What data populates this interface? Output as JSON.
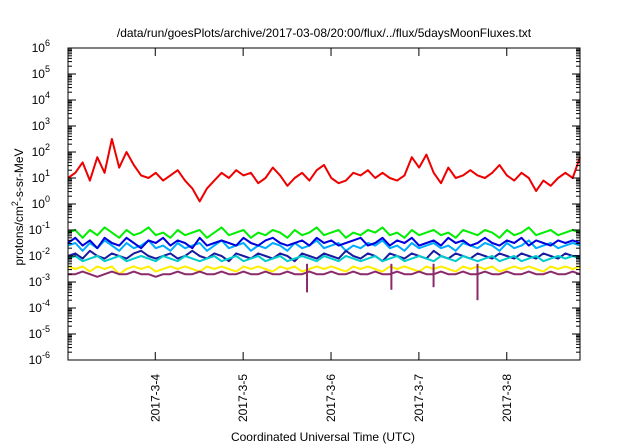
{
  "chart_data": {
    "type": "line",
    "title": "/data/run/goesPlots/archive/2017-03-08/20:00/flux/../flux/5daysMoonFluxes.txt",
    "xlabel": "Coordinated Universal Time (UTC)",
    "ylabel_parts": [
      "protons/cm",
      "2",
      "-s-sr-MeV"
    ],
    "y_scale": "log",
    "ylim_exponents": [
      -6,
      6
    ],
    "y_ticks": [
      {
        "base": "10",
        "exp": "6"
      },
      {
        "base": "10",
        "exp": "5"
      },
      {
        "base": "10",
        "exp": "4"
      },
      {
        "base": "10",
        "exp": "3"
      },
      {
        "base": "10",
        "exp": "2"
      },
      {
        "base": "10",
        "exp": "1"
      },
      {
        "base": "10",
        "exp": "0"
      },
      {
        "base": "10",
        "exp": "-1"
      },
      {
        "base": "10",
        "exp": "-2"
      },
      {
        "base": "10",
        "exp": "-3"
      },
      {
        "base": "10",
        "exp": "-4"
      },
      {
        "base": "10",
        "exp": "-5"
      },
      {
        "base": "10",
        "exp": "-6"
      }
    ],
    "x_range_days": [
      "2017-03-03T00:10",
      "2017-03-08T20:00"
    ],
    "x_ticks": [
      "2017-3-4",
      "2017-3-5",
      "2017-3-6",
      "2017-3-7",
      "2017-3-8"
    ],
    "grid": false,
    "legend": "none",
    "series": [
      {
        "color": "#ee0000",
        "log10_values": [
          1.0,
          1.2,
          1.6,
          0.9,
          1.8,
          1.2,
          2.5,
          1.4,
          2.0,
          1.5,
          1.1,
          1.0,
          1.2,
          0.9,
          1.1,
          1.3,
          0.9,
          0.6,
          0.1,
          0.6,
          0.9,
          1.2,
          1.0,
          1.3,
          1.1,
          1.2,
          0.8,
          1.0,
          1.4,
          1.1,
          0.7,
          1.0,
          1.2,
          0.9,
          1.3,
          1.5,
          1.0,
          0.8,
          0.9,
          1.2,
          1.1,
          1.3,
          1.0,
          1.2,
          1.0,
          0.9,
          1.1,
          1.8,
          1.4,
          1.9,
          1.2,
          0.8,
          1.4,
          1.0,
          1.1,
          1.3,
          1.1,
          1.0,
          1.2,
          1.5,
          1.1,
          0.9,
          1.2,
          1.0,
          0.5,
          0.9,
          0.7,
          1.0,
          1.2,
          1.0,
          1.8
        ]
      },
      {
        "color": "#00ee00",
        "log10_values": [
          -1.1,
          -1.0,
          -1.3,
          -1.0,
          -1.2,
          -0.9,
          -1.1,
          -1.3,
          -1.0,
          -1.2,
          -1.1,
          -0.9,
          -1.2,
          -1.1,
          -1.3,
          -1.0,
          -1.2,
          -1.1,
          -1.0,
          -1.3,
          -1.1,
          -0.9,
          -1.2,
          -1.1,
          -1.0,
          -1.3,
          -1.1,
          -1.2,
          -1.0,
          -1.1,
          -1.3,
          -1.0,
          -1.2,
          -1.1,
          -0.9,
          -1.2,
          -1.1,
          -1.0,
          -1.3,
          -1.1,
          -1.2,
          -1.0,
          -1.1,
          -0.9,
          -1.2,
          -1.1,
          -1.3,
          -1.0,
          -1.2,
          -1.1,
          -1.0,
          -1.2,
          -1.1,
          -1.3,
          -1.0,
          -1.1,
          -1.2,
          -1.0,
          -1.1,
          -1.3,
          -1.0,
          -1.2,
          -1.1,
          -0.9,
          -1.2,
          -1.1,
          -1.0,
          -1.2,
          -1.1,
          -1.0,
          -1.1
        ]
      },
      {
        "color": "#00aaff",
        "log10_values": [
          -1.6,
          -1.5,
          -1.8,
          -1.5,
          -1.7,
          -1.4,
          -1.6,
          -1.8,
          -1.5,
          -1.7,
          -1.6,
          -1.4,
          -1.7,
          -1.6,
          -1.8,
          -1.5,
          -1.7,
          -1.6,
          -1.5,
          -1.8,
          -1.6,
          -1.4,
          -1.7,
          -1.6,
          -1.5,
          -1.8,
          -1.6,
          -1.7,
          -1.5,
          -1.6,
          -1.8,
          -1.5,
          -1.7,
          -1.6,
          -1.4,
          -1.7,
          -1.6,
          -1.5,
          -1.8,
          -1.6,
          -1.7,
          -1.5,
          -1.6,
          -1.4,
          -1.7,
          -1.6,
          -1.8,
          -1.5,
          -1.7,
          -1.6,
          -1.5,
          -1.7,
          -1.6,
          -1.8,
          -1.5,
          -1.6,
          -1.7,
          -1.5,
          -1.6,
          -1.8,
          -1.5,
          -1.7,
          -1.6,
          -1.4,
          -1.7,
          -1.6,
          -1.5,
          -1.7,
          -1.6,
          -1.5,
          -1.6
        ]
      },
      {
        "color": "#0000dd",
        "log10_values": [
          -1.5,
          -1.3,
          -1.6,
          -1.4,
          -1.7,
          -1.3,
          -1.5,
          -1.6,
          -1.3,
          -1.5,
          -1.7,
          -1.4,
          -1.5,
          -1.3,
          -1.6,
          -1.4,
          -1.5,
          -1.7,
          -1.3,
          -1.6,
          -1.5,
          -1.4,
          -1.5,
          -1.6,
          -1.3,
          -1.5,
          -1.6,
          -1.4,
          -1.3,
          -1.5,
          -1.6,
          -1.5,
          -1.4,
          -1.6,
          -1.3,
          -1.5,
          -1.4,
          -1.6,
          -1.5,
          -1.4,
          -1.3,
          -1.6,
          -1.5,
          -1.3,
          -1.6,
          -1.4,
          -1.5,
          -1.3,
          -1.6,
          -1.5,
          -1.4,
          -1.6,
          -1.3,
          -1.5,
          -1.4,
          -1.6,
          -1.5,
          -1.3,
          -1.5,
          -1.6,
          -1.4,
          -1.5,
          -1.3,
          -1.6,
          -1.4,
          -1.5,
          -1.6,
          -1.4,
          -1.5,
          -1.4,
          -1.5
        ]
      },
      {
        "color": "#1a1aa0",
        "log10_values": [
          -2.0,
          -1.9,
          -2.1,
          -1.8,
          -2.0,
          -2.1,
          -1.9,
          -2.0,
          -2.1,
          -1.9,
          -1.8,
          -2.0,
          -2.1,
          -2.0,
          -1.9,
          -2.1,
          -2.0,
          -1.8,
          -2.0,
          -2.1,
          -1.9,
          -2.0,
          -2.2,
          -1.9,
          -2.0,
          -2.1,
          -1.9,
          -2.0,
          -2.1,
          -1.9,
          -2.0,
          -2.2,
          -1.9,
          -2.0,
          -2.1,
          -1.9,
          -2.0,
          -2.1,
          -1.8,
          -2.0,
          -2.1,
          -1.9,
          -2.0,
          -2.2,
          -1.9,
          -2.0,
          -2.1,
          -1.9,
          -2.0,
          -2.1,
          -1.8,
          -2.0,
          -2.1,
          -1.9,
          -2.0,
          -2.1,
          -1.9,
          -2.0,
          -2.1,
          -1.9,
          -2.0,
          -2.1,
          -1.9,
          -2.0,
          -2.1,
          -1.9,
          -2.0,
          -2.1,
          -1.9,
          -2.0,
          -2.0
        ]
      },
      {
        "color": "#00cccc",
        "log10_values": [
          -2.1,
          -2.0,
          -2.2,
          -2.1,
          -2.0,
          -2.2,
          -2.1,
          -2.0,
          -2.2,
          -2.1,
          -2.0,
          -2.1,
          -2.2,
          -2.0,
          -2.1,
          -2.2,
          -2.0,
          -2.1,
          -2.2,
          -2.1,
          -2.0,
          -2.2,
          -2.1,
          -2.0,
          -2.2,
          -2.1,
          -2.0,
          -2.2,
          -2.1,
          -2.0,
          -2.2,
          -2.1,
          -2.0,
          -2.1,
          -2.2,
          -2.0,
          -2.1,
          -2.2,
          -2.0,
          -2.1,
          -2.2,
          -2.1,
          -2.0,
          -2.2,
          -2.1,
          -2.0,
          -2.2,
          -2.1,
          -2.0,
          -2.1,
          -2.2,
          -2.0,
          -2.1,
          -2.2,
          -2.0,
          -2.1,
          -2.2,
          -2.1,
          -2.0,
          -2.2,
          -2.1,
          -2.0,
          -2.2,
          -2.1,
          -2.0,
          -2.2,
          -2.1,
          -2.0,
          -2.1,
          -2.0,
          -2.1
        ]
      },
      {
        "color": "#ffee00",
        "log10_values": [
          -2.4,
          -2.5,
          -2.4,
          -2.6,
          -2.4,
          -2.5,
          -2.4,
          -2.7,
          -2.5,
          -2.4,
          -2.5,
          -2.4,
          -2.6,
          -2.5,
          -2.4,
          -2.5,
          -2.4,
          -2.5,
          -2.6,
          -2.4,
          -2.5,
          -2.4,
          -2.5,
          -2.6,
          -2.4,
          -2.5,
          -2.4,
          -2.5,
          -2.6,
          -2.4,
          -2.5,
          -2.4,
          -2.6,
          -2.5,
          -2.4,
          -2.5,
          -2.4,
          -2.5,
          -2.6,
          -2.4,
          -2.5,
          -2.4,
          -2.5,
          -2.6,
          -2.4,
          -2.5,
          -2.4,
          -2.5,
          -2.6,
          -2.4,
          -2.5,
          -2.4,
          -2.5,
          -2.6,
          -2.4,
          -2.5,
          -2.4,
          -2.5,
          -2.4,
          -2.6,
          -2.5,
          -2.4,
          -2.5,
          -2.4,
          -2.5,
          -2.6,
          -2.4,
          -2.5,
          -2.4,
          -2.5,
          -2.4
        ]
      },
      {
        "color": "#8b2a6b",
        "log10_values": [
          -2.7,
          -2.7,
          -2.6,
          -2.7,
          -2.8,
          -2.7,
          -2.6,
          -2.7,
          -2.7,
          -2.6,
          -2.7,
          -2.7,
          -2.8,
          -2.7,
          -2.7,
          -2.6,
          -2.7,
          -2.7,
          -2.6,
          -2.7,
          -2.7,
          -2.6,
          -2.7,
          -2.7,
          -2.6,
          -2.7,
          -2.7,
          -2.6,
          -2.7,
          -2.7,
          -2.6,
          -2.7,
          -2.7,
          -2.6,
          -2.7,
          -2.7,
          -2.6,
          -2.7,
          -2.7,
          -2.6,
          -2.7,
          -2.7,
          -2.6,
          -2.7,
          -2.7,
          -2.6,
          -2.7,
          -2.7,
          -2.6,
          -2.7,
          -2.7,
          -2.6,
          -2.7,
          -2.7,
          -2.6,
          -2.7,
          -2.7,
          -2.6,
          -2.7,
          -2.7,
          -2.6,
          -2.7,
          -2.7,
          -2.6,
          -2.7,
          -2.7,
          -2.6,
          -2.7,
          -2.7,
          -2.6,
          -2.7
        ]
      }
    ],
    "dips": [
      {
        "day": 2.72,
        "log10_min": -3.4
      },
      {
        "day": 3.68,
        "log10_min": -3.3
      },
      {
        "day": 4.16,
        "log10_min": -3.2
      },
      {
        "day": 4.66,
        "log10_min": -3.7
      }
    ]
  }
}
